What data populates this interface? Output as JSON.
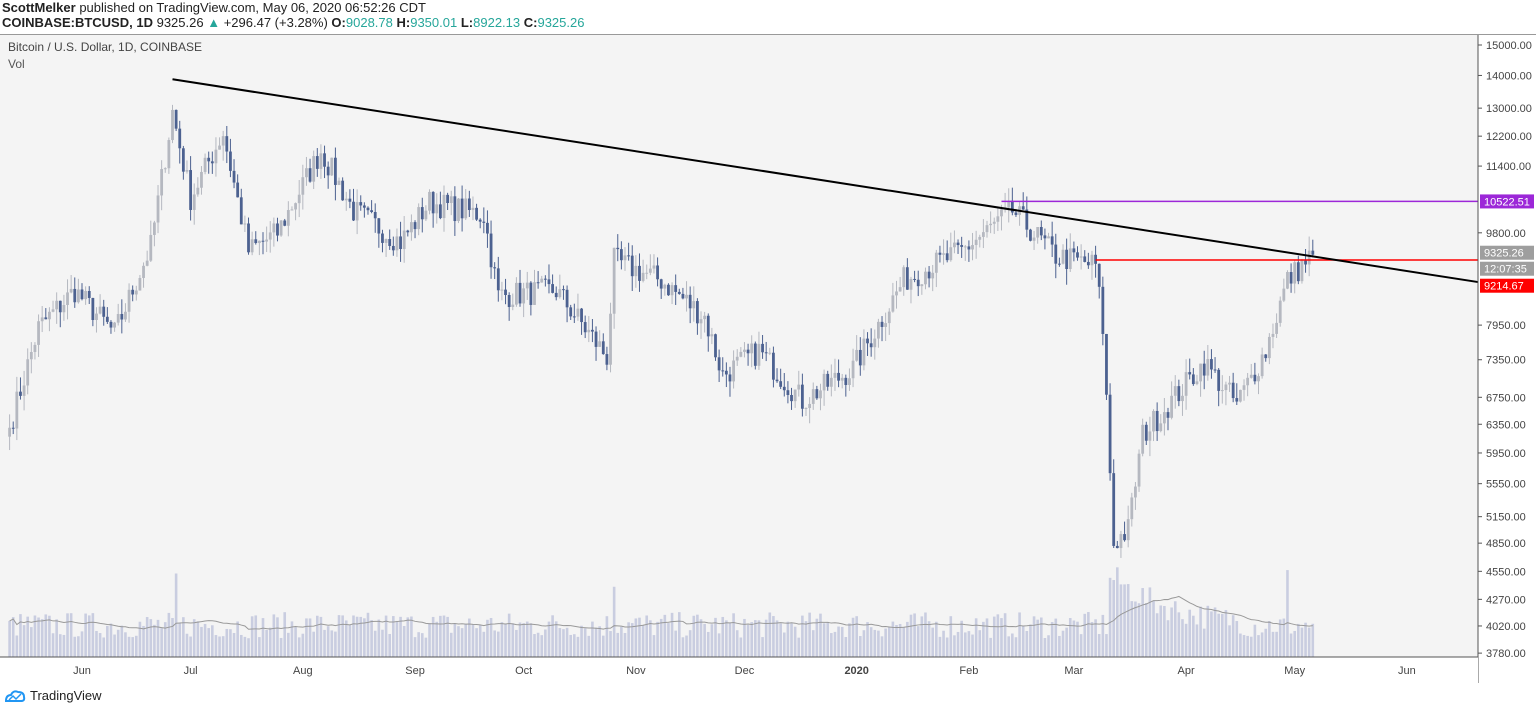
{
  "header": {
    "author": "ScottMelker",
    "published": "published on TradingView.com, May 06, 2020 06:52:26 CDT",
    "symbol": "COINBASE:BTCUSD, 1D",
    "last": "9325.26",
    "change": "+296.47 (+3.28%)",
    "o_label": "O:",
    "o": "9028.78",
    "h_label": "H:",
    "h": "9350.01",
    "l_label": "L:",
    "l": "8922.13",
    "c_label": "C:",
    "c": "9325.26"
  },
  "legend": {
    "title": "Bitcoin / U.S. Dollar, 1D, COINBASE",
    "vol": "Vol"
  },
  "footer": {
    "brand": "TradingView"
  },
  "colors": {
    "up": "#b5b8c0",
    "down": "#4c6190",
    "volume": "#c9cde0",
    "trend": "#000000",
    "purple": "#9c27d8",
    "red": "#ff0000",
    "gray_tag": "#9e9e9e"
  },
  "chart_data": {
    "type": "candlestick",
    "title": "Bitcoin / U.S. Dollar, 1D, COINBASE",
    "y_scale": "log",
    "ylim": [
      3780,
      15000
    ],
    "y_ticks": [
      "15000.00",
      "14000.00",
      "13000.00",
      "12200.00",
      "11400.00",
      "9800.00",
      "7950.00",
      "7350.00",
      "6750.00",
      "6350.00",
      "5950.00",
      "5550.00",
      "5150.00",
      "4850.00",
      "4550.00",
      "4270.00",
      "4020.00",
      "3780.00"
    ],
    "x_ticks": [
      "Jun",
      "Jul",
      "Aug",
      "Sep",
      "Oct",
      "Nov",
      "Dec",
      "2020",
      "Feb",
      "Mar",
      "Apr",
      "May",
      "Jun"
    ],
    "x_tick_dates": [
      "2019-06-01",
      "2019-07-01",
      "2019-08-01",
      "2019-09-01",
      "2019-10-01",
      "2019-11-01",
      "2019-12-01",
      "2020-01-01",
      "2020-02-01",
      "2020-03-01",
      "2020-04-01",
      "2020-05-01",
      "2020-06-01"
    ],
    "start_date": "2019-05-12",
    "close_keypoints": [
      [
        "2019-05-12",
        6300
      ],
      [
        "2019-05-20",
        7900
      ],
      [
        "2019-05-30",
        8600
      ],
      [
        "2019-06-10",
        7800
      ],
      [
        "2019-06-20",
        9500
      ],
      [
        "2019-06-26",
        12900
      ],
      [
        "2019-07-01",
        10600
      ],
      [
        "2019-07-10",
        12300
      ],
      [
        "2019-07-17",
        9400
      ],
      [
        "2019-07-25",
        9800
      ],
      [
        "2019-08-06",
        11800
      ],
      [
        "2019-08-15",
        10300
      ],
      [
        "2019-08-28",
        9600
      ],
      [
        "2019-09-05",
        10500
      ],
      [
        "2019-09-20",
        10200
      ],
      [
        "2019-09-24",
        8500
      ],
      [
        "2019-10-10",
        8600
      ],
      [
        "2019-10-24",
        7400
      ],
      [
        "2019-10-26",
        9200
      ],
      [
        "2019-11-08",
        8800
      ],
      [
        "2019-11-20",
        8100
      ],
      [
        "2019-11-25",
        7100
      ],
      [
        "2019-12-05",
        7500
      ],
      [
        "2019-12-17",
        6700
      ],
      [
        "2019-12-31",
        7200
      ],
      [
        "2020-01-14",
        8800
      ],
      [
        "2020-01-30",
        9400
      ],
      [
        "2020-02-13",
        10300
      ],
      [
        "2020-02-25",
        9300
      ],
      [
        "2020-03-07",
        9100
      ],
      [
        "2020-03-09",
        7900
      ],
      [
        "2020-03-12",
        4850
      ],
      [
        "2020-03-16",
        5000
      ],
      [
        "2020-03-20",
        6200
      ],
      [
        "2020-04-06",
        7300
      ],
      [
        "2020-04-15",
        6650
      ],
      [
        "2020-04-23",
        7500
      ],
      [
        "2020-04-29",
        8800
      ],
      [
        "2020-05-06",
        9325.26
      ]
    ],
    "volume_spike_dates": [
      "2019-06-27",
      "2019-10-26",
      "2020-03-12",
      "2020-03-13",
      "2020-04-29"
    ],
    "trendline": {
      "from": [
        "2019-06-26",
        13880
      ],
      "to": [
        "2020-06-22",
        8750
      ]
    },
    "levels": [
      {
        "name": "resistance",
        "value": 10522.51,
        "label": "10522.51",
        "from": "2020-02-10",
        "color": "#9c27d8"
      },
      {
        "name": "support",
        "value": 9214.67,
        "label": "9214.67",
        "from": "2020-03-07",
        "color": "#ff0000"
      }
    ],
    "last_price_label": "9325.26",
    "countdown": "12:07:35"
  }
}
